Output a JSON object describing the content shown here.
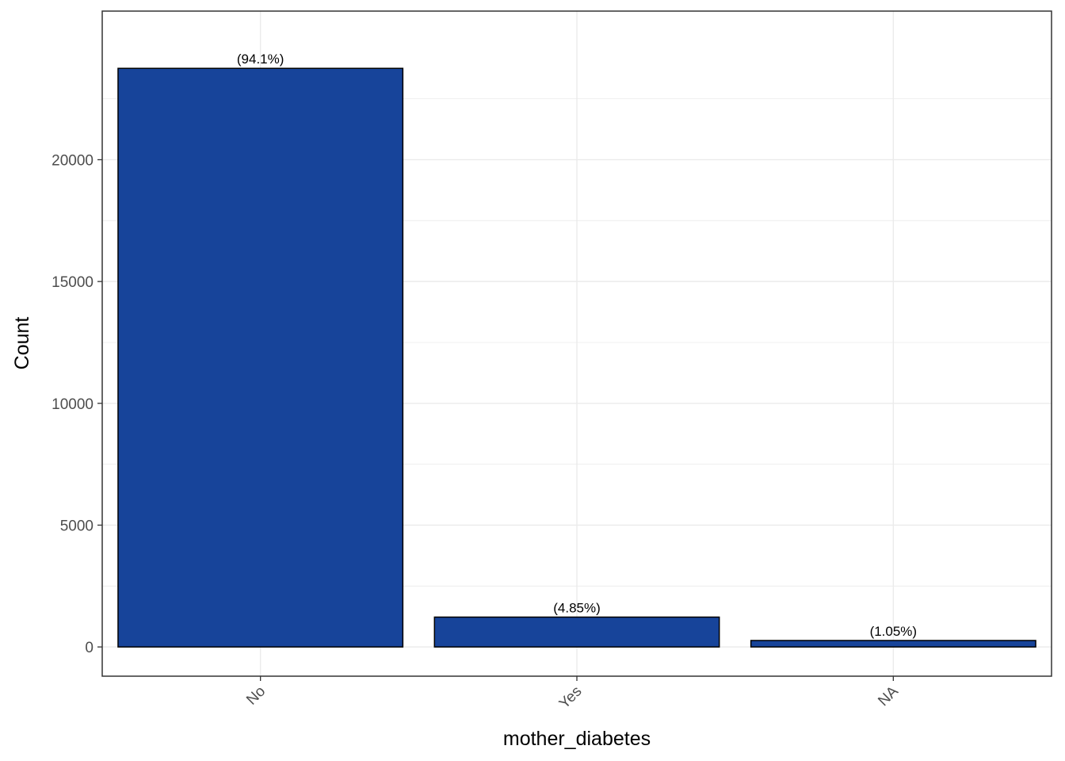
{
  "chart_data": {
    "type": "bar",
    "categories": [
      "No",
      "Yes",
      "NA"
    ],
    "values": [
      23750,
      1225,
      265
    ],
    "data_labels": [
      "(94.1%)",
      "(4.85%)",
      "(1.05%)"
    ],
    "xlabel": "mother_diabetes",
    "ylabel": "Count",
    "ylim": [
      -1200,
      26100
    ],
    "yticks": [
      0,
      5000,
      10000,
      15000,
      20000
    ],
    "ytick_labels": [
      "0",
      "5000",
      "10000",
      "15000",
      "20000"
    ],
    "grid": true,
    "legend": "none",
    "colors": {
      "bar_fill": "#17449A",
      "bar_outline": "#000000",
      "grid": "#EBEBEB",
      "panel_border": "#333333",
      "tick_text": "#4D4D4D"
    }
  }
}
